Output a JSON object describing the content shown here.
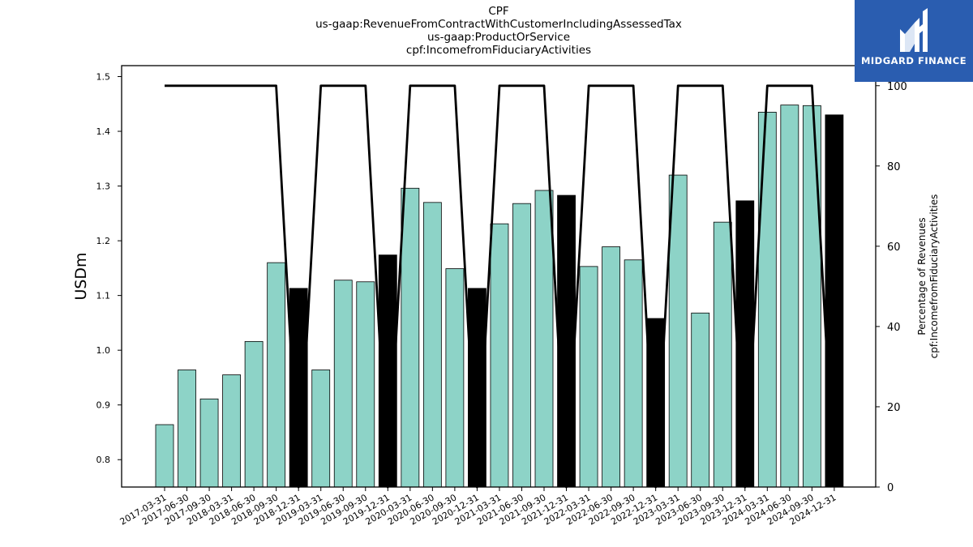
{
  "chart_data": {
    "type": "bar",
    "title_lines": [
      "CPF",
      "us-gaap:RevenueFromContractWithCustomerIncludingAssessedTax",
      "us-gaap:ProductOrService",
      "cpf:IncomefromFiduciaryActivities"
    ],
    "ylabel": "USDm",
    "y2label_lines": [
      "Percentage of Revenues",
      "cpf:IncomefromFiduciaryActivities"
    ],
    "ylim": [
      0.75,
      1.52
    ],
    "y_ticks": [
      "0.8",
      "0.9",
      "1.0",
      "1.1",
      "1.2",
      "1.3",
      "1.4",
      "1.5"
    ],
    "y2lim": [
      0,
      105
    ],
    "y2_ticks": [
      "0",
      "20",
      "40",
      "60",
      "80",
      "100"
    ],
    "categories": [
      "2017-03-31",
      "2017-06-30",
      "2017-09-30",
      "2018-03-31",
      "2018-06-30",
      "2018-09-30",
      "2018-12-31",
      "2019-03-31",
      "2019-06-30",
      "2019-09-30",
      "2019-12-31",
      "2020-03-31",
      "2020-06-30",
      "2020-09-30",
      "2020-12-31",
      "2021-03-31",
      "2021-06-30",
      "2021-09-30",
      "2021-12-31",
      "2022-03-31",
      "2022-06-30",
      "2022-09-30",
      "2022-12-31",
      "2023-03-31",
      "2023-06-30",
      "2023-09-30",
      "2023-12-31",
      "2024-03-31",
      "2024-06-30",
      "2024-09-30",
      "2024-12-31"
    ],
    "series": [
      {
        "type": "bar",
        "values": [
          0.864,
          0.964,
          0.911,
          0.955,
          1.016,
          1.16,
          1.113,
          0.964,
          1.128,
          1.125,
          1.174,
          1.296,
          1.27,
          1.149,
          1.113,
          1.231,
          1.268,
          1.292,
          1.283,
          1.153,
          1.189,
          1.165,
          1.058,
          1.32,
          1.068,
          1.234,
          1.273,
          1.435,
          1.448,
          1.447,
          1.43
        ],
        "highlight": [
          false,
          false,
          false,
          false,
          false,
          false,
          true,
          false,
          false,
          false,
          true,
          false,
          false,
          false,
          true,
          false,
          false,
          false,
          true,
          false,
          false,
          false,
          true,
          false,
          false,
          false,
          true,
          false,
          false,
          false,
          true
        ],
        "color": "#8dd3c7",
        "highlight_color": "#000000"
      },
      {
        "type": "line",
        "axis": "right",
        "values": [
          100,
          100,
          100,
          100,
          100,
          100,
          0,
          100,
          100,
          100,
          0,
          100,
          100,
          100,
          0,
          100,
          100,
          100,
          0,
          100,
          100,
          100,
          0,
          100,
          100,
          100,
          0,
          100,
          100,
          100,
          0
        ],
        "color": "#000000"
      }
    ],
    "grid": false,
    "legend": "none"
  },
  "logo": {
    "text": "MIDGARD FINANCE",
    "background": "#2a5db0"
  }
}
